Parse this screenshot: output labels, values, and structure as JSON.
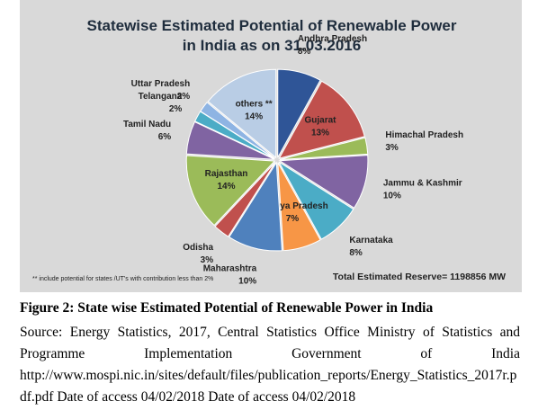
{
  "chart_data": {
    "type": "pie",
    "title": "Statewise Estimated Potential of Renewable Power in India as on 31.03.2016",
    "categories": [
      "Andhra Pradesh",
      "Gujarat",
      "Himachal Pradesh",
      "Jammu & Kashmir",
      "Karnataka",
      "Madhya Pradesh",
      "Maharashtra",
      "Odisha",
      "Rajasthan",
      "Tamil Nadu",
      "Telangana",
      "Uttar Pradesh",
      "others **"
    ],
    "values": [
      8,
      13,
      3,
      10,
      8,
      7,
      10,
      3,
      14,
      6,
      2,
      2,
      14
    ],
    "value_labels": [
      "8%",
      "13%",
      "3%",
      "10%",
      "8%",
      "7%",
      "10%",
      "3%",
      "14%",
      "6%",
      "2%",
      "2%",
      "14%"
    ],
    "colors": [
      "#2f5597",
      "#c0504d",
      "#9bbb59",
      "#8064a2",
      "#4bacc6",
      "#f79646",
      "#4f81bd",
      "#c0504d",
      "#9bbb59",
      "#8064a2",
      "#4bacc6",
      "#8eb4e3",
      "#b9cde5"
    ],
    "footnote": "** include potential for states /UT's with contribution less than 2%",
    "total_note": "Total Estimated  Reserve= 1198856 MW"
  },
  "caption": "Figure 2: State wise Estimated Potential of Renewable Power in India",
  "source": "Source: Energy Statistics, 2017, Central Statistics Office Ministry of Statistics and Programme Implementation Government of India http://www.mospi.nic.in/sites/default/files/publication_reports/Energy_Statistics_2017r.pdf.pdf Date of access 04/02/2018 Date of access 04/02/2018"
}
